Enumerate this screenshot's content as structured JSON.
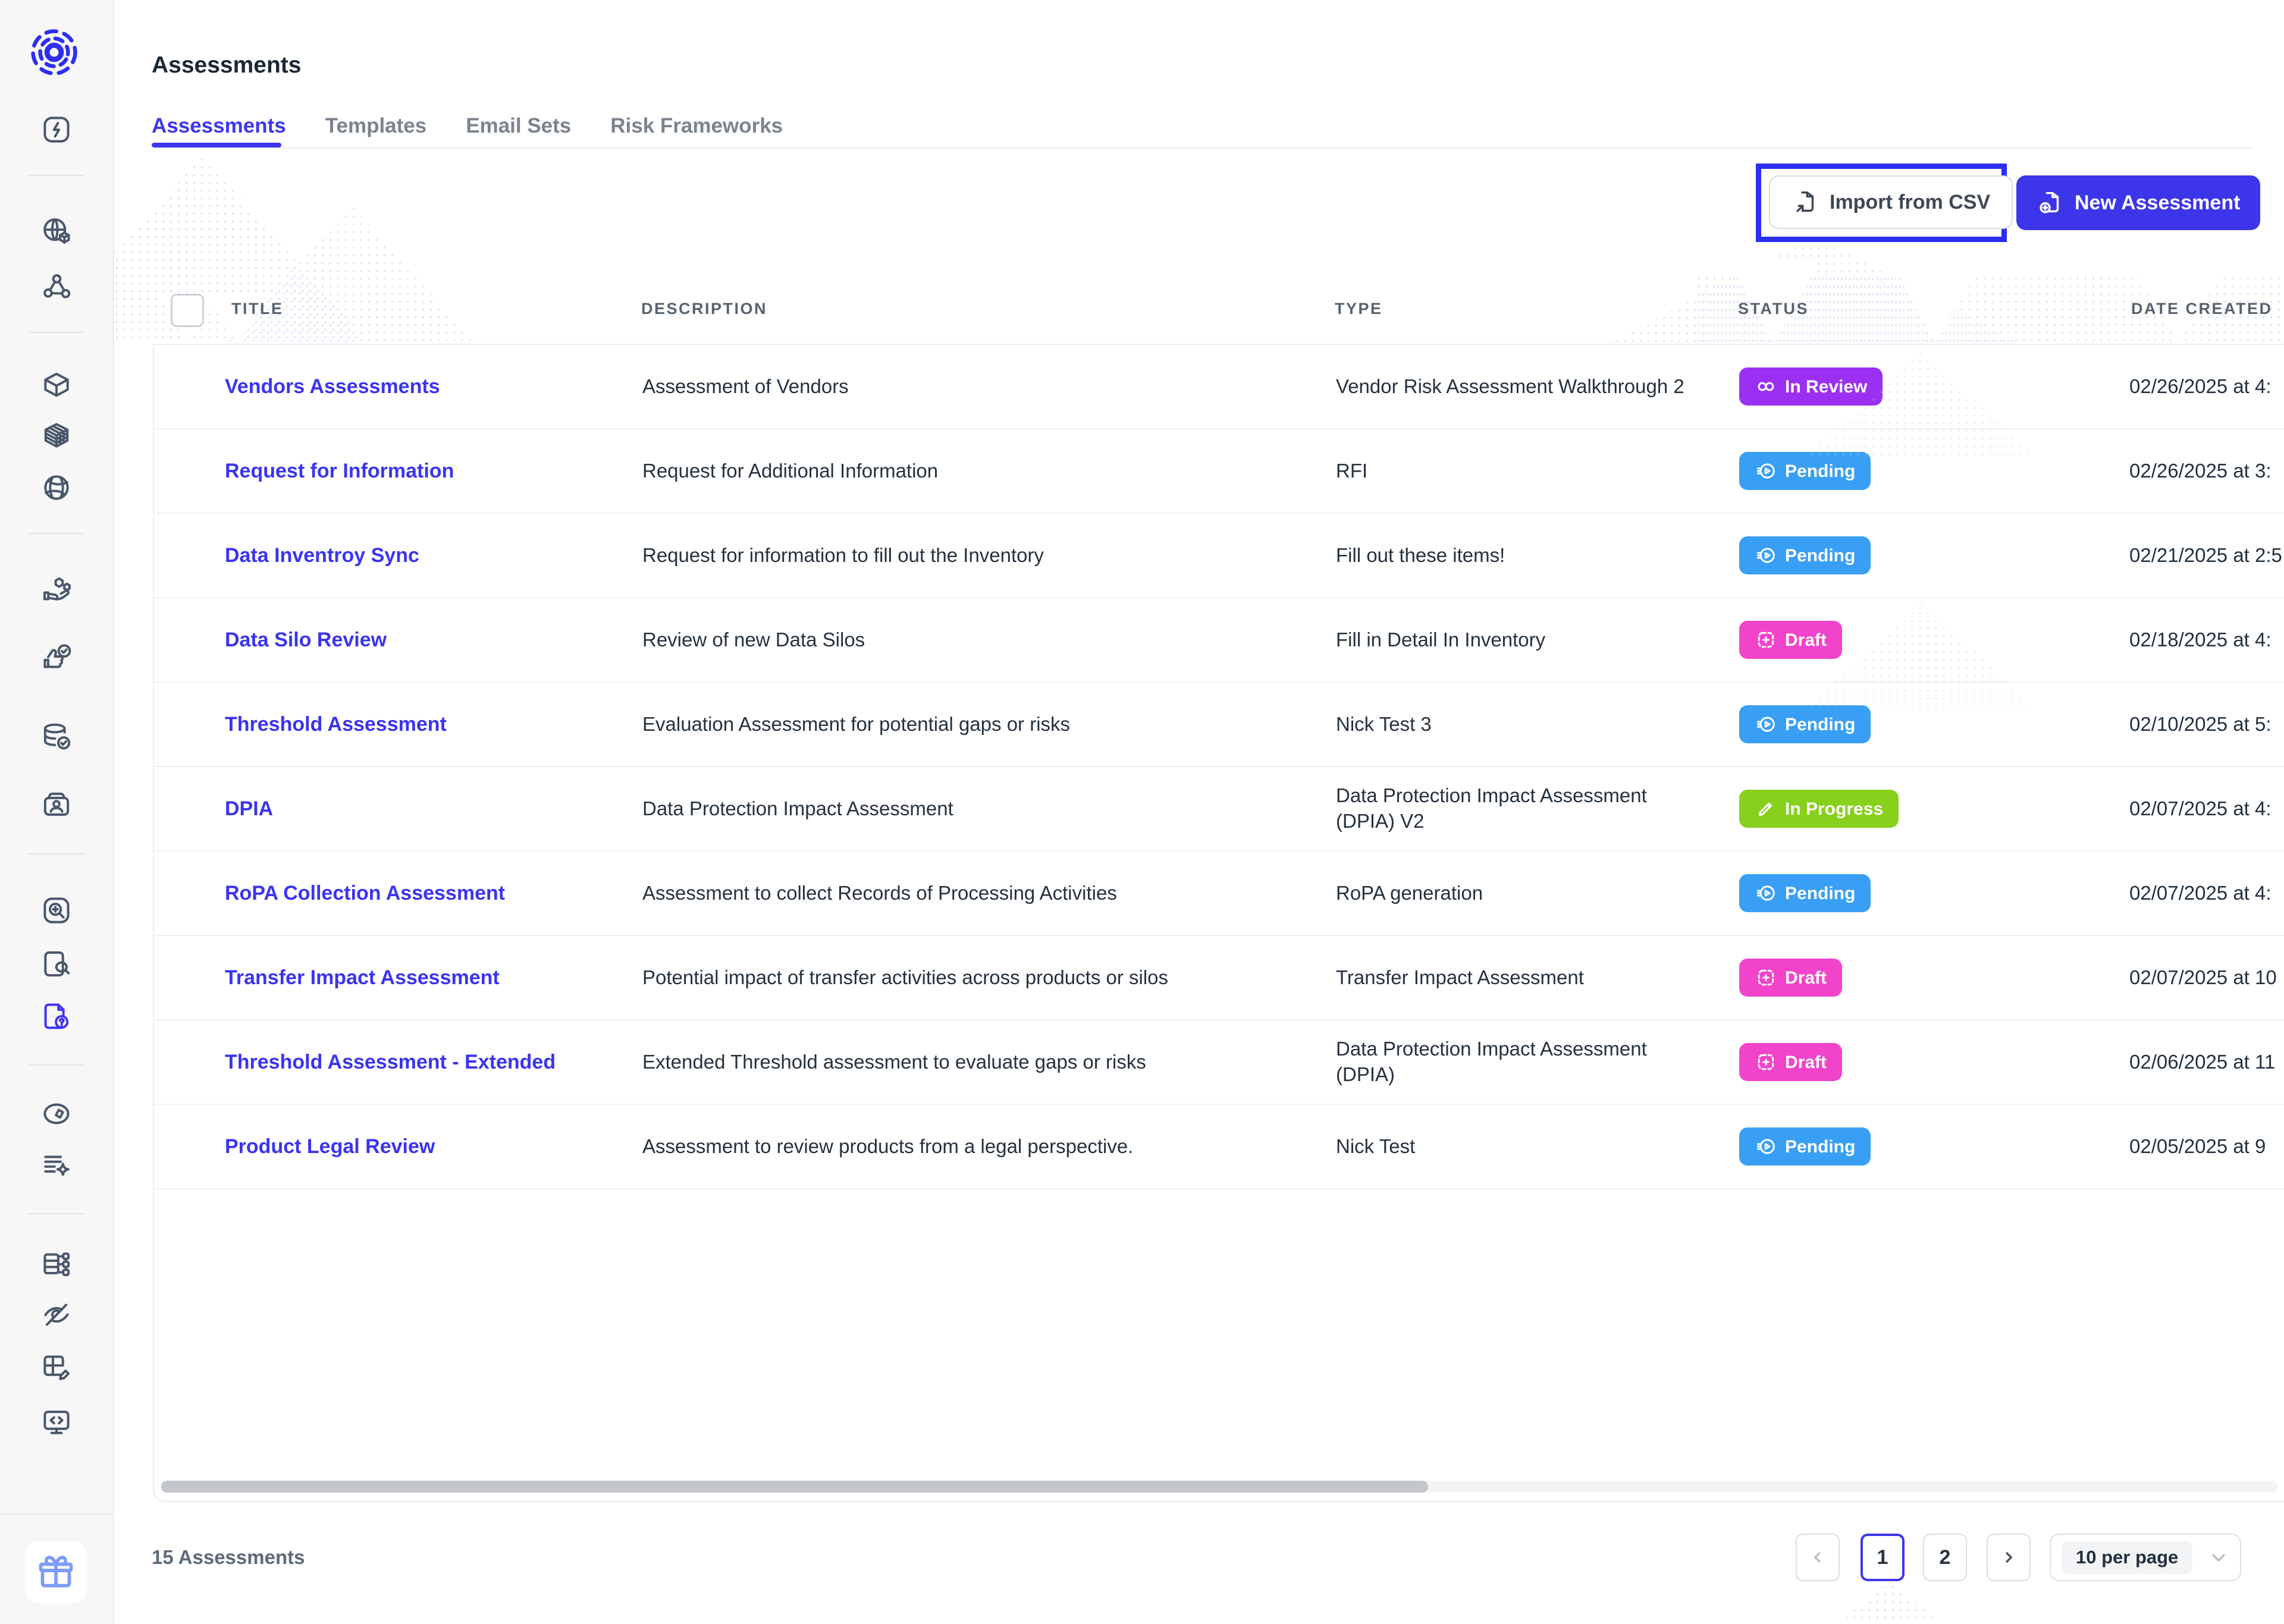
{
  "page": {
    "title": "Assessments"
  },
  "tabs": [
    {
      "label": "Assessments",
      "active": true
    },
    {
      "label": "Templates",
      "active": false
    },
    {
      "label": "Email Sets",
      "active": false
    },
    {
      "label": "Risk Frameworks",
      "active": false
    }
  ],
  "toolbar": {
    "import_label": "Import from CSV",
    "new_label": "New Assessment"
  },
  "table": {
    "columns": [
      "TITLE",
      "DESCRIPTION",
      "TYPE",
      "STATUS",
      "DATE CREATED"
    ],
    "rows": [
      {
        "title": "Vendors Assessments",
        "description": "Assessment of Vendors",
        "type": "Vendor Risk Assessment Walkthrough 2",
        "status": "In Review",
        "status_key": "in_review",
        "date": "02/26/2025 at 4:"
      },
      {
        "title": "Request for Information",
        "description": "Request for Additional Information",
        "type": "RFI",
        "status": "Pending",
        "status_key": "pending",
        "date": "02/26/2025 at 3:"
      },
      {
        "title": "Data Inventroy Sync",
        "description": "Request for information to fill out the Inventory",
        "type": "Fill out these items!",
        "status": "Pending",
        "status_key": "pending",
        "date": "02/21/2025 at 2:5"
      },
      {
        "title": "Data Silo Review",
        "description": "Review of new Data Silos",
        "type": "Fill in Detail In Inventory",
        "status": "Draft",
        "status_key": "draft",
        "date": "02/18/2025 at 4:"
      },
      {
        "title": "Threshold Assessment",
        "description": "Evaluation Assessment for potential gaps or risks",
        "type": "Nick Test 3",
        "status": "Pending",
        "status_key": "pending",
        "date": "02/10/2025 at 5:"
      },
      {
        "title": "DPIA",
        "description": "Data Protection Impact Assessment",
        "type": "Data Protection Impact Assessment (DPIA) V2",
        "status": "In Progress",
        "status_key": "in_progress",
        "date": "02/07/2025 at 4:"
      },
      {
        "title": "RoPA Collection Assessment",
        "description": "Assessment to collect Records of Processing Activities",
        "type": "RoPA generation",
        "status": "Pending",
        "status_key": "pending",
        "date": "02/07/2025 at 4:"
      },
      {
        "title": "Transfer Impact Assessment",
        "description": "Potential impact of transfer activities across products or silos",
        "type": "Transfer Impact Assessment",
        "status": "Draft",
        "status_key": "draft",
        "date": "02/07/2025 at 10"
      },
      {
        "title": "Threshold Assessment - Extended",
        "description": "Extended Threshold assessment to evaluate gaps or risks",
        "type": "Data Protection Impact Assessment (DPIA)",
        "status": "Draft",
        "status_key": "draft",
        "date": "02/06/2025 at 11"
      },
      {
        "title": "Product Legal Review",
        "description": "Assessment to review products from a legal perspective.",
        "type": "Nick Test",
        "status": "Pending",
        "status_key": "pending",
        "date": "02/05/2025 at 9"
      }
    ]
  },
  "status_colors": {
    "in_review": "#9b30f3",
    "pending": "#389ff4",
    "draft": "#f144cb",
    "in_progress": "#87d01b"
  },
  "colors": {
    "brand_blue": "#3d36ee",
    "annotation_blue": "#2a2ff2",
    "link_blue": "#3a34f0"
  },
  "footer": {
    "count_label": "15 Assessments",
    "pages": [
      "1",
      "2"
    ],
    "active_page": "1",
    "page_size_label": "10 per page"
  },
  "sidebar": {
    "items": [
      {
        "icon": "lightning-icon"
      },
      {
        "type": "divider"
      },
      {
        "icon": "globe-cube-icon"
      },
      {
        "icon": "network-nodes-icon"
      },
      {
        "type": "divider"
      },
      {
        "icon": "cube-icon"
      },
      {
        "icon": "rubik-cube-icon"
      },
      {
        "icon": "sphere-icon"
      },
      {
        "type": "divider"
      },
      {
        "icon": "hand-items-icon"
      },
      {
        "icon": "hand-check-icon"
      },
      {
        "icon": "database-check-icon"
      },
      {
        "icon": "id-card-icon"
      },
      {
        "type": "divider"
      },
      {
        "icon": "zoom-plus-icon"
      },
      {
        "icon": "document-search-icon"
      },
      {
        "icon": "document-question-icon",
        "active": true
      },
      {
        "type": "divider"
      },
      {
        "icon": "compass-icon"
      },
      {
        "icon": "list-sparkle-icon"
      },
      {
        "type": "divider"
      },
      {
        "icon": "schema-icon"
      },
      {
        "icon": "eye-slash-icon"
      },
      {
        "icon": "table-edit-icon"
      },
      {
        "icon": "monitor-code-icon"
      }
    ],
    "gift_icon": "gift-icon",
    "logo_icon": "brand-logo"
  }
}
